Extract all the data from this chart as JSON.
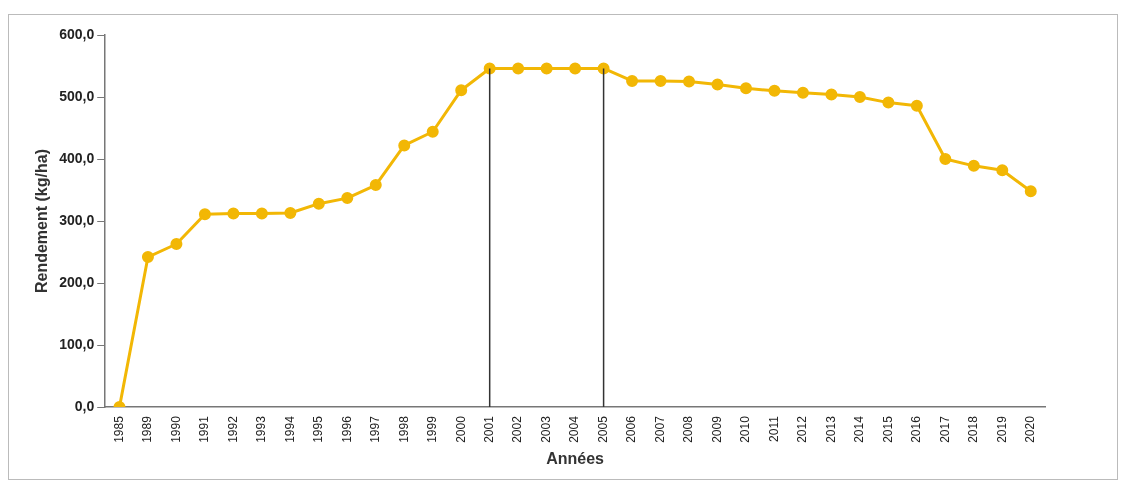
{
  "chart_data": {
    "type": "line",
    "xlabel": "Années",
    "ylabel": "Rendement (kg/ha)",
    "categories": [
      "1985",
      "1989",
      "1990",
      "1991",
      "1992",
      "1993",
      "1994",
      "1995",
      "1996",
      "1997",
      "1998",
      "1999",
      "2000",
      "2001",
      "2002",
      "2003",
      "2004",
      "2005",
      "2006",
      "2007",
      "2008",
      "2009",
      "2010",
      "2011",
      "2012",
      "2013",
      "2014",
      "2015",
      "2016",
      "2017",
      "2018",
      "2019",
      "2020"
    ],
    "series": [
      {
        "color": "#f2b705",
        "values": [
          0,
          242,
          263,
          311,
          312,
          312,
          313,
          328,
          337,
          358,
          422,
          444,
          511,
          546,
          546,
          546,
          546,
          546,
          526,
          526,
          525,
          520,
          514,
          510,
          507,
          504,
          500,
          491,
          486,
          400,
          389,
          382,
          348
        ]
      }
    ],
    "ylim": [
      0,
      600
    ],
    "yticks": [
      {
        "value": 0,
        "label": "0,0"
      },
      {
        "value": 100,
        "label": "100,0"
      },
      {
        "value": 200,
        "label": "200,0"
      },
      {
        "value": 300,
        "label": "300,0"
      },
      {
        "value": 400,
        "label": "400,0"
      },
      {
        "value": 500,
        "label": "500,0"
      },
      {
        "value": 600,
        "label": "600,0"
      }
    ],
    "ref_lines": [
      {
        "axis": "x",
        "value": "2001",
        "color": "#333333"
      },
      {
        "axis": "x",
        "value": "2005",
        "color": "#333333"
      }
    ],
    "grid": false,
    "legend": false,
    "marker": "circle",
    "line_style": "solid"
  }
}
